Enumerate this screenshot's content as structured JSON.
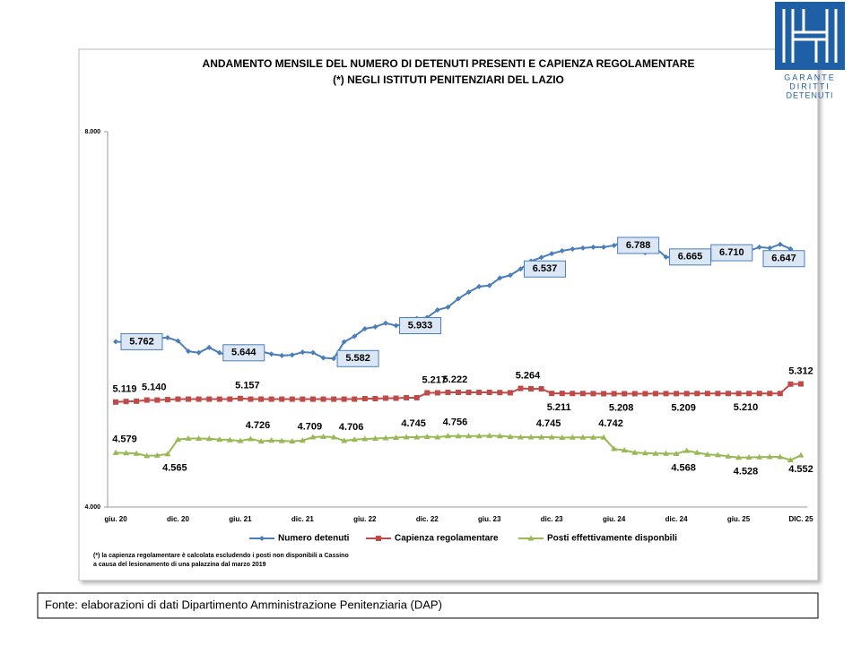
{
  "chart_data": {
    "type": "line",
    "title": "ANDAMENTO MENSILE  DEL NUMERO DI DETENUTI PRESENTI E CAPIENZA REGOLAMENTARE",
    "subtitle": "(*) NEGLI ISTITUTI PENITENZIARI DEL LAZIO",
    "categories": [
      "giu. 20",
      null,
      null,
      null,
      null,
      null,
      "dic. 20",
      null,
      null,
      null,
      null,
      null,
      "giu. 21",
      null,
      null,
      null,
      null,
      null,
      "dic. 21",
      null,
      null,
      null,
      null,
      null,
      "giu. 22",
      null,
      null,
      null,
      null,
      null,
      "dic. 22",
      null,
      null,
      null,
      null,
      null,
      "giu. 23",
      null,
      null,
      null,
      null,
      null,
      "dic. 23",
      null,
      null,
      null,
      null,
      null,
      "giu. 24",
      null,
      null,
      null,
      null,
      null,
      "dic. 24",
      null,
      null,
      null,
      null,
      null,
      "giu. 25",
      null,
      null,
      null,
      null,
      null,
      "DIC. 25"
    ],
    "ylim": [
      4000,
      8000
    ],
    "yticks": [
      {
        "value": 4000,
        "label": "4.000"
      },
      {
        "value": 8000,
        "label": "8.000"
      }
    ],
    "series": [
      {
        "name": "Numero detenuti",
        "color": "#4a7ebb",
        "marker": "diamond",
        "values": [
          5762,
          5755,
          5780,
          5820,
          5800,
          5805,
          5770,
          5660,
          5645,
          5700,
          5644,
          5610,
          5640,
          5640,
          5660,
          5630,
          5615,
          5620,
          5650,
          5645,
          5590,
          5582,
          5760,
          5820,
          5900,
          5920,
          5960,
          5933,
          5950,
          6010,
          6020,
          6100,
          6130,
          6220,
          6290,
          6350,
          6360,
          6440,
          6470,
          6537,
          6620,
          6660,
          6700,
          6730,
          6750,
          6760,
          6770,
          6770,
          6788,
          6830,
          6740,
          6710,
          6760,
          6665,
          6650,
          6700,
          6720,
          6710,
          6660,
          6700,
          6690,
          6730,
          6770,
          6760,
          6800,
          6750,
          6647
        ],
        "value_labels": [
          "5.762",
          null,
          null,
          null,
          null,
          null,
          null,
          null,
          null,
          null,
          "5.644",
          null,
          null,
          null,
          null,
          null,
          null,
          null,
          null,
          null,
          null,
          "5.582",
          null,
          null,
          null,
          null,
          null,
          "5.933",
          null,
          null,
          null,
          null,
          null,
          null,
          null,
          null,
          null,
          null,
          null,
          "6.537",
          null,
          null,
          null,
          null,
          null,
          null,
          null,
          null,
          "6.788",
          null,
          null,
          null,
          null,
          "6.665",
          null,
          null,
          null,
          "6.710",
          null,
          null,
          null,
          null,
          null,
          null,
          null,
          null,
          "6.647"
        ]
      },
      {
        "name": "Capienza regolamentare",
        "color": "#be4b48",
        "marker": "square",
        "values": [
          5119,
          5125,
          5128,
          5140,
          5140,
          5145,
          5150,
          5150,
          5150,
          5150,
          5150,
          5150,
          5157,
          5150,
          5150,
          5150,
          5150,
          5150,
          5150,
          5150,
          5150,
          5150,
          5150,
          5150,
          5155,
          5155,
          5160,
          5160,
          5165,
          5165,
          5217,
          5217,
          5222,
          5222,
          5222,
          5222,
          5222,
          5220,
          5218,
          5264,
          5260,
          5260,
          5211,
          5211,
          5210,
          5210,
          5209,
          5208,
          5208,
          5208,
          5208,
          5208,
          5209,
          5209,
          5209,
          5209,
          5210,
          5210,
          5210,
          5210,
          5210,
          5210,
          5210,
          5210,
          5210,
          5310,
          5312
        ],
        "value_labels": [
          "5.119",
          null,
          null,
          "5.140",
          null,
          null,
          null,
          null,
          null,
          null,
          null,
          null,
          "5.157",
          null,
          null,
          null,
          null,
          null,
          null,
          null,
          null,
          null,
          null,
          null,
          null,
          null,
          null,
          null,
          null,
          null,
          "5.217",
          null,
          "5.222",
          null,
          null,
          null,
          null,
          null,
          null,
          "5.264",
          null,
          null,
          "5.211",
          null,
          null,
          null,
          null,
          null,
          "5.208",
          null,
          null,
          null,
          null,
          null,
          "5.209",
          null,
          null,
          null,
          null,
          null,
          "5.210",
          null,
          null,
          null,
          null,
          null,
          "5.312"
        ]
      },
      {
        "name": "Posti effettivamente disponbili",
        "color": "#98b954",
        "marker": "triangle",
        "values": [
          4579,
          4575,
          4570,
          4545,
          4550,
          4565,
          4720,
          4730,
          4730,
          4728,
          4720,
          4715,
          4705,
          4726,
          4700,
          4710,
          4705,
          4700,
          4709,
          4745,
          4750,
          4745,
          4706,
          4720,
          4725,
          4730,
          4735,
          4740,
          4745,
          4745,
          4750,
          4745,
          4756,
          4756,
          4756,
          4756,
          4760,
          4756,
          4750,
          4745,
          4745,
          4745,
          4745,
          4740,
          4742,
          4742,
          4742,
          4742,
          4620,
          4605,
          4580,
          4575,
          4570,
          4570,
          4568,
          4600,
          4580,
          4560,
          4555,
          4540,
          4528,
          4530,
          4532,
          4535,
          4535,
          4500,
          4552
        ],
        "value_labels": [
          "4.579",
          null,
          null,
          null,
          null,
          "4.565",
          null,
          null,
          null,
          null,
          null,
          null,
          null,
          "4.726",
          null,
          null,
          null,
          null,
          "4.709",
          null,
          null,
          null,
          "4.706",
          null,
          null,
          null,
          null,
          null,
          "4.745",
          null,
          null,
          null,
          "4.756",
          null,
          null,
          null,
          null,
          null,
          null,
          null,
          null,
          "4.745",
          null,
          null,
          null,
          null,
          null,
          "4.742",
          null,
          null,
          null,
          null,
          null,
          null,
          "4.568",
          null,
          null,
          null,
          null,
          null,
          "4.528",
          null,
          null,
          null,
          null,
          null,
          "4.552"
        ]
      }
    ],
    "legend": "bottom",
    "note": [
      "(*) la capienza regolamentare è calcolata escludendo i posti non disponibili a Cassino",
      "a causa del lesionamento di una palazzina dal marzo 2019"
    ]
  },
  "logo": [
    "GARANTE",
    "DIRITTI",
    "DETENUTI"
  ],
  "source": "Fonte: elaborazioni di dati Dipartimento Amministrazione Penitenziaria (DAP)"
}
